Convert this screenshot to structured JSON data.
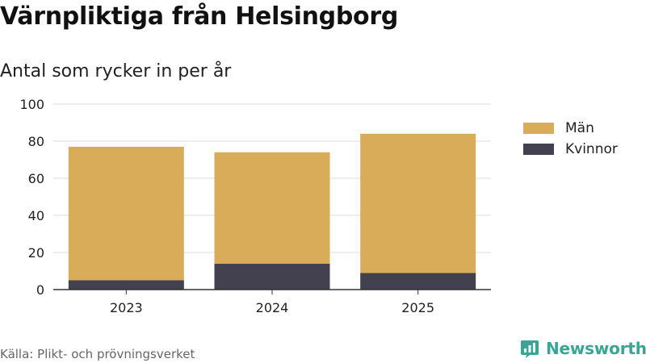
{
  "title": "Värnpliktiga från Helsingborg",
  "subtitle": "Antal som rycker in per år",
  "source": "Källa: Plikt- och prövningsverket",
  "brand": "Newsworthy",
  "colors": {
    "man": "#d9ac5a",
    "kvinnor": "#43404f",
    "grid": "#dddddd",
    "axis": "#333333",
    "brand": "#3aa595"
  },
  "chart_data": {
    "type": "bar",
    "stacked": true,
    "categories": [
      "2023",
      "2024",
      "2025"
    ],
    "series": [
      {
        "name": "Kvinnor",
        "values": [
          5,
          14,
          9
        ],
        "color": "#43404f"
      },
      {
        "name": "Män",
        "values": [
          72,
          60,
          75
        ],
        "color": "#d9ac5a"
      }
    ],
    "ylim": [
      0,
      100
    ],
    "yticks": [
      0,
      20,
      40,
      60,
      80,
      100
    ],
    "grid": true,
    "legend": "right",
    "legend_order": [
      "Män",
      "Kvinnor"
    ]
  }
}
